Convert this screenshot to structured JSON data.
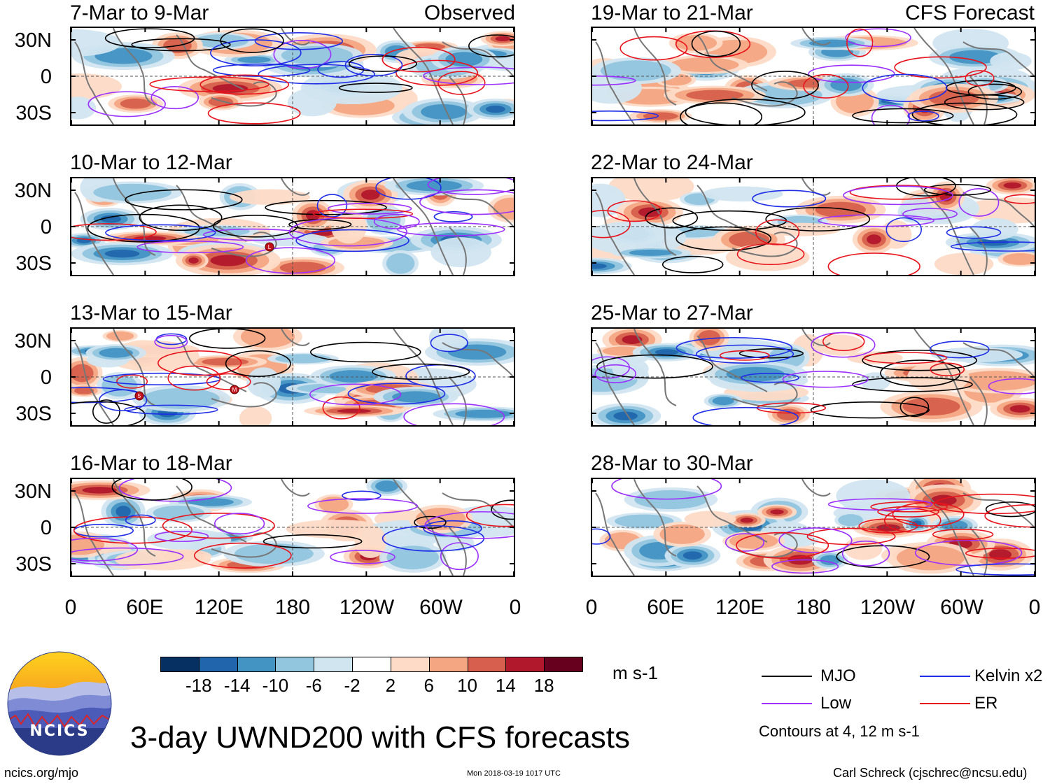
{
  "left_header_right": "Observed",
  "right_header_right": "CFS Forecast",
  "panels_left": [
    {
      "title": "7-Mar to 9-Mar"
    },
    {
      "title": "10-Mar to 12-Mar"
    },
    {
      "title": "13-Mar to 15-Mar"
    },
    {
      "title": "16-Mar to 18-Mar"
    }
  ],
  "panels_right": [
    {
      "title": "19-Mar to 21-Mar"
    },
    {
      "title": "22-Mar to 24-Mar"
    },
    {
      "title": "25-Mar to 27-Mar"
    },
    {
      "title": "28-Mar to 30-Mar"
    }
  ],
  "y_ticks": [
    "30N",
    "0",
    "30S"
  ],
  "x_ticks": [
    "0",
    "60E",
    "120E",
    "180",
    "120W",
    "60W",
    "0"
  ],
  "colorbar": {
    "labels": [
      "-18",
      "-14",
      "-10",
      "-6",
      "-2",
      "2",
      "6",
      "10",
      "14",
      "18"
    ],
    "colors": [
      "#053061",
      "#2166ac",
      "#4393c3",
      "#92c5de",
      "#d1e5f0",
      "#ffffff",
      "#fddbc7",
      "#f4a582",
      "#d6604d",
      "#b2182b",
      "#67001f"
    ],
    "units": "m s-1"
  },
  "legend": {
    "items": [
      {
        "label": "MJO",
        "color": "#000000"
      },
      {
        "label": "Kelvin x2",
        "color": "#1f2ee6"
      },
      {
        "label": "Low",
        "color": "#9b30ff"
      },
      {
        "label": "ER",
        "color": "#e8141c"
      }
    ],
    "note": "Contours at 4, 12 m s-1"
  },
  "storm_markers": [
    "L",
    "5",
    "M"
  ],
  "logo_text": "NCICS",
  "main_title": "3-day UWND200 with CFS forecasts",
  "url": "ncics.org/mjo",
  "timestamp": "Mon 2018-03-19 1017 UTC",
  "author": "Carl Schreck (cjschrec@ncsu.edu)"
}
